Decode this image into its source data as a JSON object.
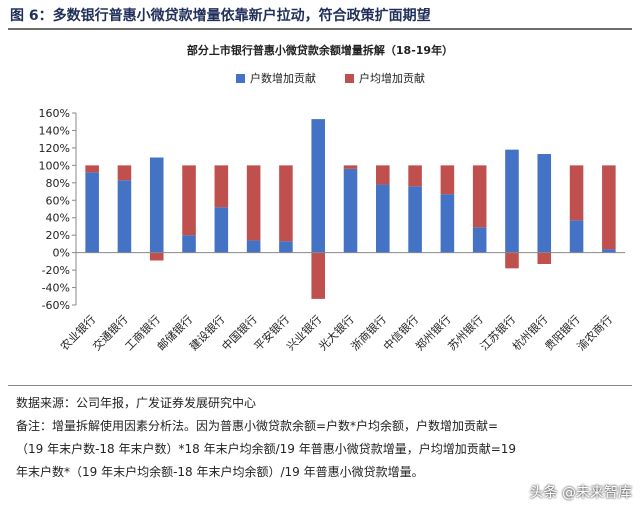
{
  "figure": {
    "title": "图 6：多数银行普惠小微贷款增量依靠新户拉动，符合政策扩面期望"
  },
  "chart_data": {
    "type": "bar",
    "stacked": true,
    "title": "部分上市银行普惠小微贷款余额增量拆解（18-19年）",
    "categories": [
      "农业银行",
      "交通银行",
      "工商银行",
      "邮储银行",
      "建设银行",
      "中国银行",
      "平安银行",
      "兴业银行",
      "光大银行",
      "浙商银行",
      "中信银行",
      "郑州银行",
      "苏州银行",
      "江苏银行",
      "杭州银行",
      "贵阳银行",
      "渝农商行"
    ],
    "series": [
      {
        "name": "户数增加贡献",
        "color": "#4472c4",
        "values": [
          92,
          83,
          109,
          20,
          52,
          14,
          13,
          153,
          96,
          78,
          76,
          67,
          29,
          118,
          113,
          37,
          4
        ]
      },
      {
        "name": "户均增加贡献",
        "color": "#c0504d",
        "values": [
          8,
          17,
          -9,
          80,
          48,
          86,
          87,
          -53,
          4,
          22,
          24,
          33,
          71,
          -18,
          -13,
          63,
          96
        ]
      }
    ],
    "ylim": [
      -60,
      160
    ],
    "yticks": [
      -60,
      -40,
      -20,
      0,
      20,
      40,
      60,
      80,
      100,
      120,
      140,
      160
    ],
    "ytick_labels": [
      "-60%",
      "-40%",
      "-20%",
      "0%",
      "20%",
      "40%",
      "60%",
      "80%",
      "100%",
      "120%",
      "140%",
      "160%"
    ],
    "legend_position": "top-center",
    "grid": false
  },
  "notes": [
    "数据来源：公司年报，广发证券发展研究中心",
    "备注：增量拆解使用因素分析法。因为普惠小微贷款余额=户数*户均余额，户数增加贡献=",
    "（19 年末户数-18 年末户数）*18 年末户均余额/19 年普惠小微贷款增量，户均增加贡献=19",
    "年末户数*（19 年末户均余额-18 年末户均余额）/19 年普惠小微贷款增量。"
  ],
  "watermark": "头条 @未来智库"
}
